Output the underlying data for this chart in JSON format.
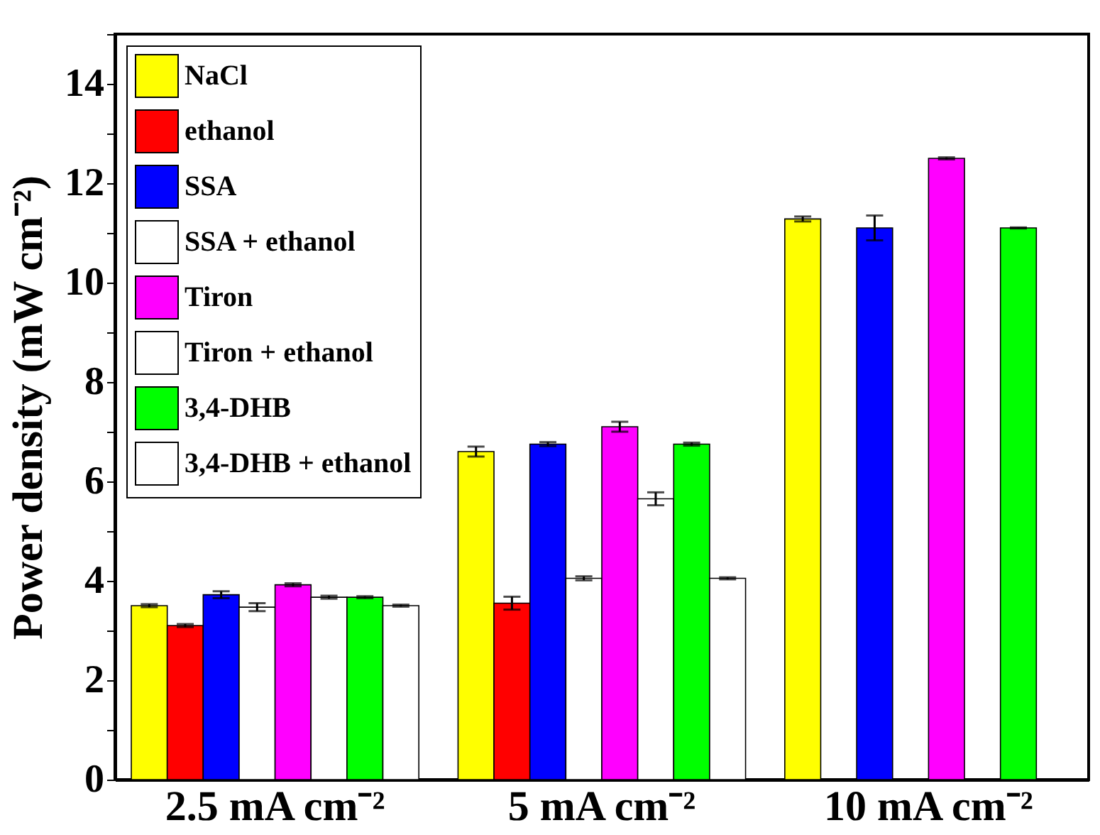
{
  "chart_data": {
    "type": "bar",
    "ylabel": "Power density (mW cm⁻²)",
    "categories": [
      "2.5 mA cm⁻²",
      "5 mA cm⁻²",
      "10 mA cm⁻²"
    ],
    "series": [
      {
        "name": "NaCl",
        "color": "#ffff00",
        "values": [
          3.5,
          6.6,
          11.28
        ],
        "errors": [
          0.03,
          0.1,
          0.05
        ]
      },
      {
        "name": "ethanol",
        "color": "#ff0000",
        "values": [
          3.1,
          3.55,
          null
        ],
        "errors": [
          0.03,
          0.13,
          null
        ]
      },
      {
        "name": "SSA",
        "color": "#0000ff",
        "values": [
          3.72,
          6.75,
          11.1
        ],
        "errors": [
          0.07,
          0.04,
          0.25
        ]
      },
      {
        "name": "SSA + ethanol",
        "color": "#ffffff",
        "values": [
          3.47,
          4.05,
          null
        ],
        "errors": [
          0.08,
          0.04,
          null
        ]
      },
      {
        "name": "Tiron",
        "color": "#ff00ff",
        "values": [
          3.92,
          7.1,
          12.5
        ],
        "errors": [
          0.03,
          0.1,
          0.02
        ]
      },
      {
        "name": "Tiron + ethanol",
        "color": "#ffffff",
        "values": [
          3.67,
          5.65,
          null
        ],
        "errors": [
          0.03,
          0.13,
          null
        ]
      },
      {
        "name": "3,4-DHB",
        "color": "#00ff00",
        "values": [
          3.67,
          6.75,
          11.1
        ],
        "errors": [
          0.02,
          0.03,
          0.01
        ]
      },
      {
        "name": "3,4-DHB + ethanol",
        "color": "#ffffff",
        "values": [
          3.5,
          4.05,
          null
        ],
        "errors": [
          0.02,
          0.02,
          null
        ]
      }
    ],
    "ylim": [
      0,
      15
    ],
    "yticks": [
      0,
      {
        "value": 1,
        "label": null
      },
      2,
      {
        "value": 3,
        "label": null
      },
      4,
      {
        "value": 5,
        "label": null
      },
      6,
      {
        "value": 7,
        "label": null
      },
      8,
      {
        "value": 9,
        "label": null
      },
      10,
      {
        "value": 11,
        "label": null
      },
      12,
      {
        "value": 13,
        "label": null
      },
      14,
      {
        "value": 15,
        "label": null
      }
    ],
    "legend": "top left",
    "grid": false
  }
}
